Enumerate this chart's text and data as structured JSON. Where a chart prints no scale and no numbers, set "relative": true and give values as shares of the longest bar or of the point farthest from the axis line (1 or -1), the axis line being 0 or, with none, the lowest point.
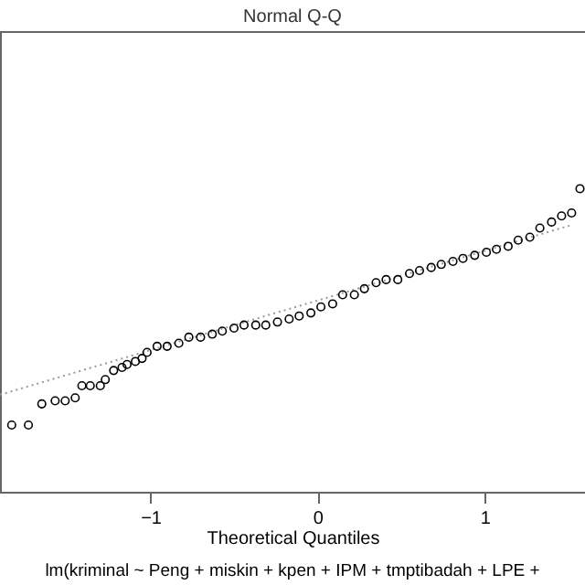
{
  "chart_data": {
    "type": "scatter",
    "title": "Normal Q-Q",
    "xlabel": "Theoretical Quantiles",
    "annotations": [
      "lm(kriminal ~ Peng + miskin + kpen + IPM + tmptibadah + LPE +"
    ],
    "relative": true,
    "xlim": [
      -1.9,
      1.6
    ],
    "xticks": [
      -1,
      0,
      1
    ],
    "series": [
      {
        "color": "#000000",
        "marker": "circle",
        "x": [
          -1.83,
          -1.73,
          -1.65,
          -1.57,
          -1.51,
          -1.45,
          -1.41,
          -1.36,
          -1.3,
          -1.27,
          -1.22,
          -1.17,
          -1.14,
          -1.09,
          -1.05,
          -1.02,
          -0.96,
          -0.9,
          -0.83,
          -0.77,
          -0.7,
          -0.63,
          -0.57,
          -0.5,
          -0.44,
          -0.37,
          -0.31,
          -0.24,
          -0.17,
          -0.11,
          -0.04,
          0.02,
          0.09,
          0.15,
          0.22,
          0.28,
          0.35,
          0.41,
          0.48,
          0.55,
          0.61,
          0.68,
          0.74,
          0.81,
          0.87,
          0.94,
          1.01,
          1.07,
          1.14,
          1.2,
          1.27,
          1.33,
          1.4,
          1.46,
          1.52,
          1.57
        ],
        "values": [
          0.22,
          0.22,
          0.29,
          0.3,
          0.3,
          0.31,
          0.35,
          0.35,
          0.35,
          0.37,
          0.4,
          0.41,
          0.42,
          0.43,
          0.44,
          0.46,
          0.48,
          0.48,
          0.49,
          0.51,
          0.51,
          0.52,
          0.53,
          0.54,
          0.55,
          0.55,
          0.55,
          0.56,
          0.57,
          0.58,
          0.59,
          0.61,
          0.62,
          0.65,
          0.65,
          0.67,
          0.69,
          0.7,
          0.7,
          0.72,
          0.73,
          0.74,
          0.75,
          0.76,
          0.77,
          0.78,
          0.79,
          0.8,
          0.81,
          0.83,
          0.84,
          0.87,
          0.89,
          0.91,
          0.92,
          1.0
        ]
      },
      {
        "type": "line",
        "color": "#999999",
        "line_style": "dotted",
        "x": [
          -1.9,
          1.52
        ],
        "values": [
          0.32,
          0.88
        ]
      }
    ]
  }
}
